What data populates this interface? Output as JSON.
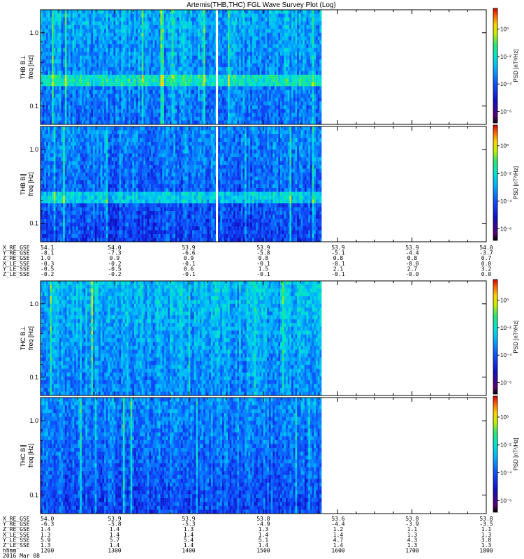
{
  "title": "Artemis(THB,THC) FGL Wave Survey Plot (Log)",
  "chart_data": [
    {
      "type": "heatmap",
      "probe": "THB",
      "panel": "B_perp",
      "ylabel_line1": "THB B⊥",
      "ylabel_line2": "freq [Hz]",
      "y_scale": "log",
      "y_ticks": [
        "1.0",
        "0.1"
      ],
      "colorbar_label": "PSD [nT²/Hz]",
      "colorbar_ticks": [
        "10⁰",
        "10⁻²",
        "10⁻⁴",
        "10⁻⁶"
      ],
      "data_extent_fraction": 0.63
    },
    {
      "type": "heatmap",
      "probe": "THB",
      "panel": "B_par",
      "ylabel_line1": "THB B∥",
      "ylabel_line2": "freq [Hz]",
      "y_scale": "log",
      "y_ticks": [
        "1.0",
        "0.1"
      ],
      "colorbar_label": "PSD [nT²/Hz]",
      "colorbar_ticks": [
        "10⁰",
        "10⁻²",
        "10⁻⁴",
        "10⁻⁶"
      ],
      "data_extent_fraction": 0.63
    },
    {
      "type": "heatmap",
      "probe": "THC",
      "panel": "B_perp",
      "ylabel_line1": "THC B⊥",
      "ylabel_line2": "freq [Hz]",
      "y_scale": "log",
      "y_ticks": [
        "1.0",
        "0.1"
      ],
      "colorbar_label": "PSD [nT²/Hz]",
      "colorbar_ticks": [
        "10⁰",
        "10⁻²",
        "10⁻⁴",
        "10⁻⁶"
      ],
      "data_extent_fraction": 0.63
    },
    {
      "type": "heatmap",
      "probe": "THC",
      "panel": "B_par",
      "ylabel_line1": "THC B∥",
      "ylabel_line2": "freq [Hz]",
      "y_scale": "log",
      "y_ticks": [
        "1.0",
        "0.1"
      ],
      "colorbar_label": "PSD [nT²/Hz]",
      "colorbar_ticks": [
        "10⁰",
        "10⁻²",
        "10⁻⁴",
        "10⁻⁶"
      ],
      "data_extent_fraction": 0.63
    }
  ],
  "ephemeris_thb": {
    "rows": [
      {
        "label": "X_RE_GSE",
        "values": [
          "54.1",
          "54.0",
          "53.9",
          "53.9",
          "53.9",
          "53.9",
          "54.0"
        ]
      },
      {
        "label": "Y_RE_GSE",
        "values": [
          "-8.1",
          "-7.3",
          "-6.6",
          "-5.8",
          "-5.1",
          "-4.4",
          "-3.7"
        ]
      },
      {
        "label": "Z_RE_GSE",
        "values": [
          "1.0",
          "0.9",
          "0.9",
          "0.8",
          "0.8",
          "0.8",
          "0.7"
        ]
      },
      {
        "label": "X_LE_SSE",
        "values": [
          "-0.3",
          "-0.2",
          "-0.1",
          "-0.1",
          "-0.1",
          "-0.0",
          "0.0"
        ]
      },
      {
        "label": "Y_LE_SSE",
        "values": [
          "-0.5",
          "-0.5",
          "0.6",
          "1.5",
          "2.1",
          "2.7",
          "3.2"
        ]
      },
      {
        "label": "Z_LE_SSE",
        "values": [
          "-0.2",
          "-0.2",
          "-0.1",
          "-0.1",
          "-0.1",
          "-0.0",
          "0.0"
        ]
      }
    ]
  },
  "ephemeris_thc": {
    "rows": [
      {
        "label": "X_RE_GSE",
        "values": [
          "54.0",
          "53.9",
          "53.9",
          "53.8",
          "53.6",
          "53.8",
          "53.8"
        ]
      },
      {
        "label": "Y_RE_GSE",
        "values": [
          "-6.3",
          "-5.8",
          "-5.3",
          "-4.9",
          "-4.4",
          "-3.9",
          "-3.5"
        ]
      },
      {
        "label": "Z_RE_GSE",
        "values": [
          "1.4",
          "1.4",
          "1.3",
          "1.3",
          "1.2",
          "1.1",
          "1.1"
        ]
      },
      {
        "label": "X_LE_SSE",
        "values": [
          "1.3",
          "1.4",
          "1.4",
          "1.4",
          "1.4",
          "1.3",
          "1.3"
        ]
      },
      {
        "label": "Y_LE_SSE",
        "values": [
          "5.9",
          "5.7",
          "5.4",
          "5.1",
          "4.7",
          "4.3",
          "3.8"
        ]
      },
      {
        "label": "Z_LE_SSE",
        "values": [
          "1.3",
          "1.4",
          "1.4",
          "1.4",
          "1.4",
          "1.3",
          "1.3"
        ]
      }
    ],
    "time_label": "hhmm",
    "times": [
      "1200",
      "1300",
      "1400",
      "1500",
      "1600",
      "1700",
      "1800"
    ],
    "date": "2016 Mar 08"
  }
}
